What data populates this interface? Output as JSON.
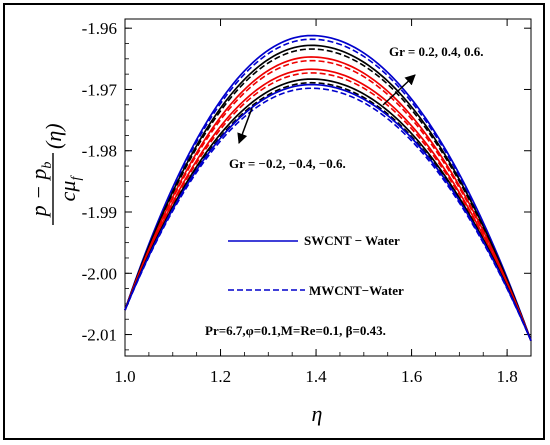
{
  "chart_data": {
    "type": "line",
    "xlabel": "η",
    "ylabel": {
      "numerator": "p − p",
      "numerator_sub": "b",
      "denominator": "cμ",
      "denominator_sub": "f",
      "argument": "(η)"
    },
    "xlim": [
      1.0,
      1.85
    ],
    "ylim": [
      -2.0135,
      -1.9585
    ],
    "x_ticks": [
      1.0,
      1.2,
      1.4,
      1.6,
      1.8
    ],
    "x_tick_labels": [
      "1.0",
      "1.2",
      "1.4",
      "1.6",
      "1.8"
    ],
    "y_ticks": [
      -1.96,
      -1.97,
      -1.98,
      -1.99,
      -2.0,
      -2.01
    ],
    "y_tick_labels": [
      "-1.96",
      "-1.97",
      "-1.98",
      "-1.99",
      "-2.00",
      "-2.01"
    ],
    "curve_shape": {
      "x_start": 1.0,
      "y_start": -2.006,
      "x_end": 1.85,
      "y_end": -2.011,
      "x_peak": 1.39
    },
    "series": [
      {
        "fluid": "SWCNT",
        "Gr": 0.6,
        "peak_y": -1.9612,
        "color": "#0000cc",
        "dashed": false
      },
      {
        "fluid": "MWCNT",
        "Gr": 0.6,
        "peak_y": -1.9618,
        "color": "#0000cc",
        "dashed": true
      },
      {
        "fluid": "SWCNT",
        "Gr": 0.4,
        "peak_y": -1.9628,
        "color": "#000000",
        "dashed": false
      },
      {
        "fluid": "MWCNT",
        "Gr": 0.4,
        "peak_y": -1.9634,
        "color": "#000000",
        "dashed": true
      },
      {
        "fluid": "SWCNT",
        "Gr": 0.2,
        "peak_y": -1.9647,
        "color": "#ee0000",
        "dashed": false
      },
      {
        "fluid": "MWCNT",
        "Gr": 0.2,
        "peak_y": -1.9653,
        "color": "#ee0000",
        "dashed": true
      },
      {
        "fluid": "SWCNT",
        "Gr": -0.2,
        "peak_y": -1.9667,
        "color": "#ee0000",
        "dashed": false
      },
      {
        "fluid": "MWCNT",
        "Gr": -0.2,
        "peak_y": -1.9673,
        "color": "#ee0000",
        "dashed": true
      },
      {
        "fluid": "SWCNT",
        "Gr": -0.4,
        "peak_y": -1.9683,
        "color": "#000000",
        "dashed": false
      },
      {
        "fluid": "MWCNT",
        "Gr": -0.4,
        "peak_y": -1.9689,
        "color": "#000000",
        "dashed": true
      },
      {
        "fluid": "SWCNT",
        "Gr": -0.6,
        "peak_y": -1.9692,
        "color": "#0000cc",
        "dashed": false
      },
      {
        "fluid": "MWCNT",
        "Gr": -0.6,
        "peak_y": -1.9698,
        "color": "#0000cc",
        "dashed": true
      }
    ],
    "legend": [
      {
        "label": "SWCNT − Water",
        "color": "#0000cc",
        "dashed": false
      },
      {
        "label": "MWCNT−Water",
        "color": "#0000cc",
        "dashed": true
      }
    ],
    "annotations": {
      "gr_positive": "Gr = 0.2, 0.4, 0.6.",
      "gr_negative": "Gr = −0.2, −0.4, −0.6.",
      "parameters": "Pr=6.7,φ=0.1,M=Re=0.1, β=0.43."
    },
    "grid": false
  }
}
